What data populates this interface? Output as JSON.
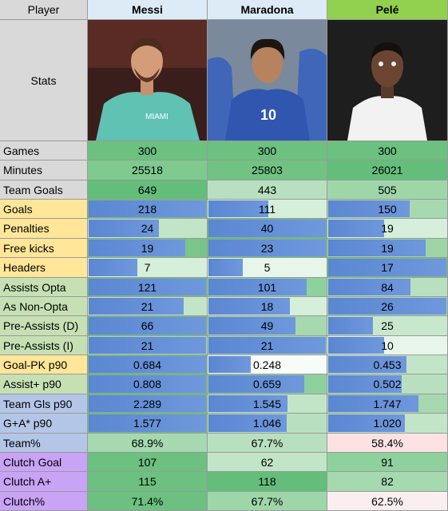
{
  "header": {
    "player": "Player",
    "columns": [
      "Messi",
      "Maradona",
      "Pelé"
    ]
  },
  "stats_label": "Stats",
  "rows": [
    {
      "label": "Games",
      "values": [
        "300",
        "300",
        "300"
      ]
    },
    {
      "label": "Minutes",
      "values": [
        "25518",
        "25803",
        "26021"
      ]
    },
    {
      "label": "Team Goals",
      "values": [
        "649",
        "443",
        "505"
      ]
    },
    {
      "label": "Goals",
      "values": [
        "218",
        "111",
        "150"
      ]
    },
    {
      "label": "Penalties",
      "values": [
        "24",
        "40",
        "19"
      ]
    },
    {
      "label": "Free kicks",
      "values": [
        "19",
        "23",
        "19"
      ]
    },
    {
      "label": "Headers",
      "values": [
        "7",
        "5",
        "17"
      ]
    },
    {
      "label": "Assists Opta",
      "values": [
        "121",
        "101",
        "84"
      ]
    },
    {
      "label": "As Non-Opta",
      "values": [
        "21",
        "18",
        "26"
      ]
    },
    {
      "label": "Pre-Assists (D)",
      "values": [
        "66",
        "49",
        "25"
      ]
    },
    {
      "label": "Pre-Assists (I)",
      "values": [
        "21",
        "21",
        "10"
      ]
    },
    {
      "label": "Goal-PK p90",
      "values": [
        "0.684",
        "0.248",
        "0.453"
      ]
    },
    {
      "label": "Assist+ p90",
      "values": [
        "0.808",
        "0.659",
        "0.502"
      ]
    },
    {
      "label": "Team Gls p90",
      "values": [
        "2.289",
        "1.545",
        "1.747"
      ]
    },
    {
      "label": "G+A* p90",
      "values": [
        "1.577",
        "1.046",
        "1.020"
      ]
    },
    {
      "label": "Team%",
      "values": [
        "68.9%",
        "67.7%",
        "58.4%"
      ]
    },
    {
      "label": "Clutch Goal",
      "values": [
        "107",
        "62",
        "91"
      ]
    },
    {
      "label": "Clutch A+",
      "values": [
        "115",
        "118",
        "82"
      ]
    },
    {
      "label": "Clutch%",
      "values": [
        "71.4%",
        "67.7%",
        "62.5%"
      ]
    }
  ]
}
